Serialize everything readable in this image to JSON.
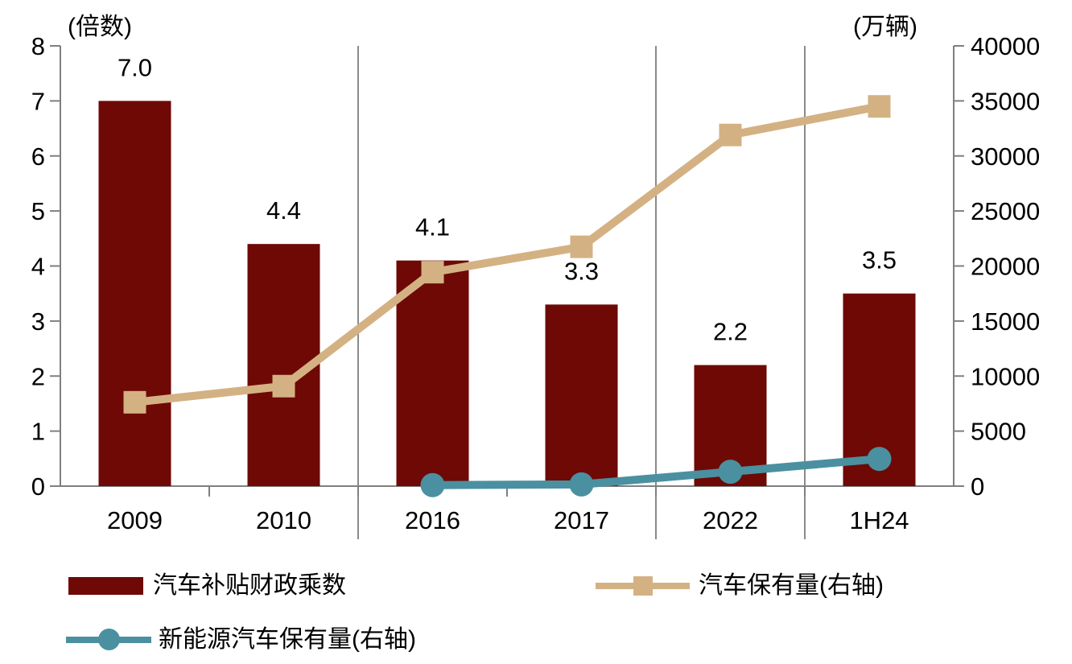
{
  "chart_data": {
    "type": "bar",
    "subtype": "bar+line combo, dual axis",
    "title": "",
    "categories": [
      "2009",
      "2010",
      "2016",
      "2017",
      "2022",
      "1H24"
    ],
    "left_axis": {
      "title": "(倍数)",
      "min": 0,
      "max": 8,
      "tick_step": 1,
      "tick_labels": [
        "0",
        "1",
        "2",
        "3",
        "4",
        "5",
        "6",
        "7",
        "8"
      ]
    },
    "right_axis": {
      "title": "(万辆)",
      "min": 0,
      "max": 40000,
      "tick_step": 5000,
      "tick_labels": [
        "0",
        "5000",
        "10000",
        "15000",
        "20000",
        "25000",
        "30000",
        "35000",
        "40000"
      ]
    },
    "series": [
      {
        "name": "汽车补贴财政乘数",
        "type": "bar",
        "axis": "left",
        "color": "#6e0905",
        "values": [
          7.0,
          4.4,
          4.1,
          3.3,
          2.2,
          3.5
        ],
        "data_labels": [
          "7.0",
          "4.4",
          "4.1",
          "3.3",
          "2.2",
          "3.5"
        ]
      },
      {
        "name": "汽车保有量(右轴)",
        "type": "line",
        "marker": "square",
        "axis": "right",
        "color": "#d4b183",
        "values": [
          7619,
          9086,
          19440,
          21743,
          31903,
          34500
        ]
      },
      {
        "name": "新能源汽车保有量(右轴)",
        "type": "line",
        "marker": "circle",
        "axis": "right",
        "color": "#4a90a0",
        "values": [
          null,
          null,
          91,
          153,
          1310,
          2472
        ]
      }
    ],
    "group_dividers_after_category": [
      "2010",
      "2017",
      "2022"
    ],
    "grid": "off",
    "legend_position": "bottom-left",
    "legend": [
      {
        "label": "汽车补贴财政乘数",
        "marker": "bar",
        "color": "#6e0905"
      },
      {
        "label": "汽车保有量(右轴)",
        "marker": "line-square",
        "color": "#d4b183"
      },
      {
        "label": "新能源汽车保有量(右轴)",
        "marker": "line-circle",
        "color": "#4a90a0"
      }
    ]
  },
  "colors": {
    "background": "#ffffff",
    "axis_line": "#7f7f7f",
    "divider_line": "#8a8a8a",
    "text": "#000000",
    "bar_red": "#6e0905",
    "line_tan": "#d4b183",
    "line_teal": "#4a90a0"
  }
}
